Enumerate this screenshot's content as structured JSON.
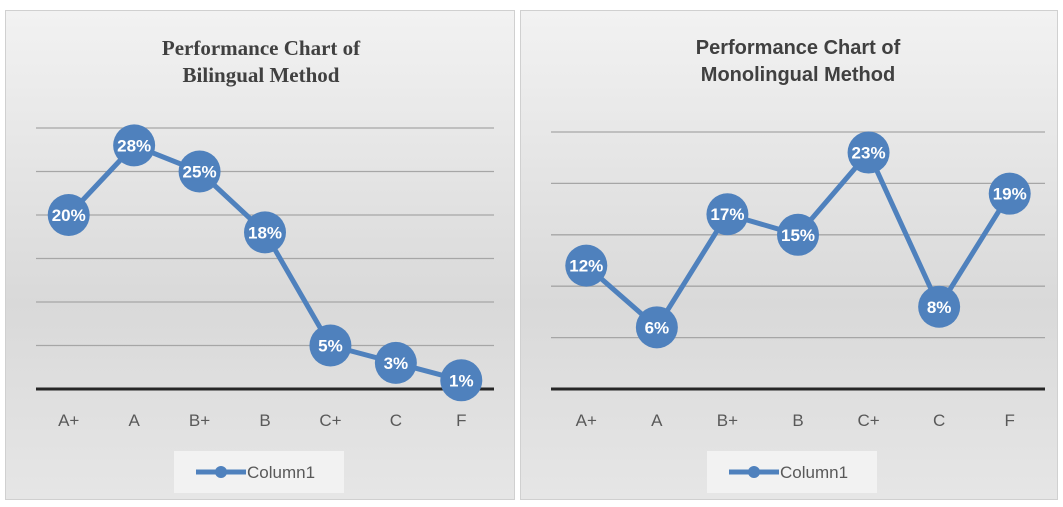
{
  "chart_data": [
    {
      "type": "line",
      "title": "Performance Chart of Bilingual Method",
      "categories": [
        "A+",
        "A",
        "B+",
        "B",
        "C+",
        "C",
        "F"
      ],
      "series": [
        {
          "name": "Column1",
          "color": "#4f81bd",
          "values": [
            20,
            28,
            25,
            18,
            5,
            3,
            1
          ],
          "value_labels": [
            "20%",
            "28%",
            "25%",
            "18%",
            "5%",
            "3%",
            "1%"
          ]
        }
      ],
      "ylim": [
        0,
        30
      ],
      "yticks": [
        0,
        5,
        10,
        15,
        20,
        25,
        30
      ],
      "grid": true,
      "legend": "bottom"
    },
    {
      "type": "line",
      "title": "Performance Chart of Monolingual Method",
      "categories": [
        "A+",
        "A",
        "B+",
        "B",
        "C+",
        "C",
        "F"
      ],
      "series": [
        {
          "name": "Column1",
          "color": "#4f81bd",
          "values": [
            12,
            6,
            17,
            15,
            23,
            8,
            19
          ],
          "value_labels": [
            "12%",
            "6%",
            "17%",
            "15%",
            "23%",
            "8%",
            "19%"
          ]
        }
      ],
      "ylim": [
        0,
        25
      ],
      "yticks": [
        0,
        5,
        10,
        15,
        20,
        25
      ],
      "grid": true,
      "legend": "bottom"
    }
  ]
}
